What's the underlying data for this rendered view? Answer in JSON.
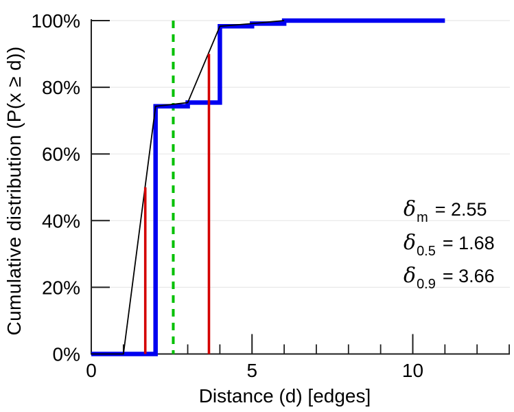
{
  "chart_data": {
    "type": "line",
    "title": "",
    "xlabel": "Distance (d) [edges]",
    "ylabel": "Cumulative distribution (P(x ≥ d))",
    "xlim": [
      0,
      13
    ],
    "ylim": [
      0,
      100
    ],
    "grid": "horizontal-light",
    "legend": "none",
    "x_ticks": {
      "major": [
        0,
        5,
        10
      ],
      "labels": [
        "0",
        "5",
        "10"
      ],
      "minor": [
        1,
        2,
        3,
        4,
        6,
        7,
        8,
        9,
        11,
        12,
        13
      ]
    },
    "y_ticks": {
      "values": [
        0,
        20,
        40,
        60,
        80,
        100
      ],
      "labels": [
        "0%",
        "20%",
        "40%",
        "60%",
        "80%",
        "100%"
      ]
    },
    "series": [
      {
        "name": "mean-marker-line",
        "style": "vline",
        "color": "#00c000",
        "stroke_width": 4,
        "dash": [
          11,
          9
        ],
        "x": 2.55,
        "y_top": 100
      },
      {
        "name": "cdf-step",
        "style": "polyline",
        "color": "#0000f0",
        "stroke_width": 6.5,
        "points": [
          [
            0,
            0
          ],
          [
            2,
            0
          ],
          [
            2,
            74.3
          ],
          [
            3,
            74.3
          ],
          [
            3,
            75.4
          ],
          [
            4,
            75.4
          ],
          [
            4,
            98.3
          ],
          [
            5,
            98.3
          ],
          [
            5,
            99.1
          ],
          [
            6,
            99.1
          ],
          [
            6,
            100
          ],
          [
            11,
            100
          ]
        ]
      },
      {
        "name": "cdf-linear-interpolation",
        "style": "polyline",
        "color": "#000000",
        "stroke_width": 1.8,
        "points": [
          [
            0,
            0
          ],
          [
            1,
            0
          ],
          [
            2,
            74.3
          ],
          [
            3,
            75.4
          ],
          [
            4,
            98.3
          ],
          [
            5,
            99.1
          ],
          [
            6,
            100
          ]
        ]
      },
      {
        "name": "median-marker-line",
        "style": "vline",
        "color": "#d40000",
        "stroke_width": 3.6,
        "dash": null,
        "x": 1.68,
        "y_top": 50
      },
      {
        "name": "p90-marker-line",
        "style": "vline",
        "color": "#d40000",
        "stroke_width": 3.6,
        "dash": null,
        "x": 3.66,
        "y_top": 90
      }
    ],
    "annotations": [
      {
        "symbol": "δ",
        "subscript": "m",
        "value": "= 2.55"
      },
      {
        "symbol": "δ",
        "subscript": "0.5",
        "value": "= 1.68"
      },
      {
        "symbol": "δ",
        "subscript": "0.9",
        "value": "= 3.66"
      }
    ],
    "colors": {
      "step": "#0000f0",
      "interpolation": "#000000",
      "quantile_markers": "#d40000",
      "mean_marker": "#00c000",
      "grid": "#e7e7e7",
      "axis": "#1f1f1f"
    }
  }
}
